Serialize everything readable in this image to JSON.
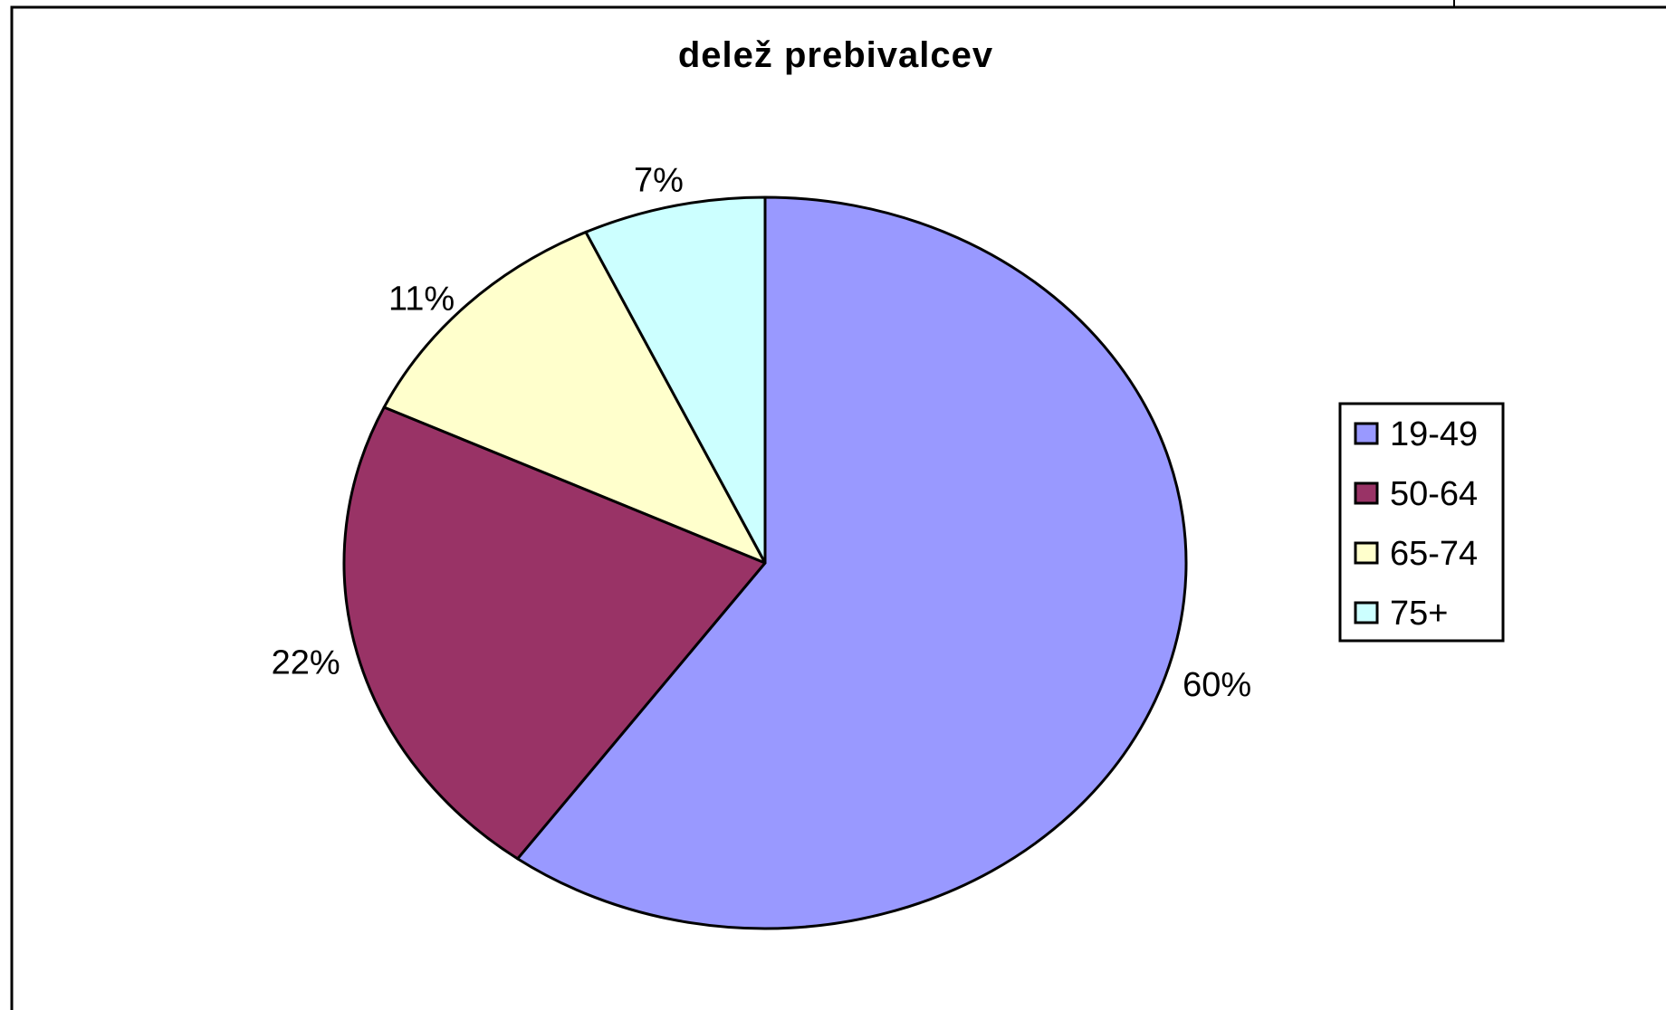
{
  "chart_data": {
    "type": "pie",
    "title": "delež prebivalcev",
    "categories": [
      "19-49",
      "50-64",
      "65-74",
      "75+"
    ],
    "values": [
      60,
      22,
      11,
      7
    ],
    "value_labels": [
      "60%",
      "22%",
      "11%",
      "7%"
    ],
    "colors": [
      "#9999ff",
      "#993366",
      "#ffffcc",
      "#ccffff"
    ],
    "legend_position": "right",
    "start_angle": "12 o'clock",
    "direction": "clockwise"
  }
}
